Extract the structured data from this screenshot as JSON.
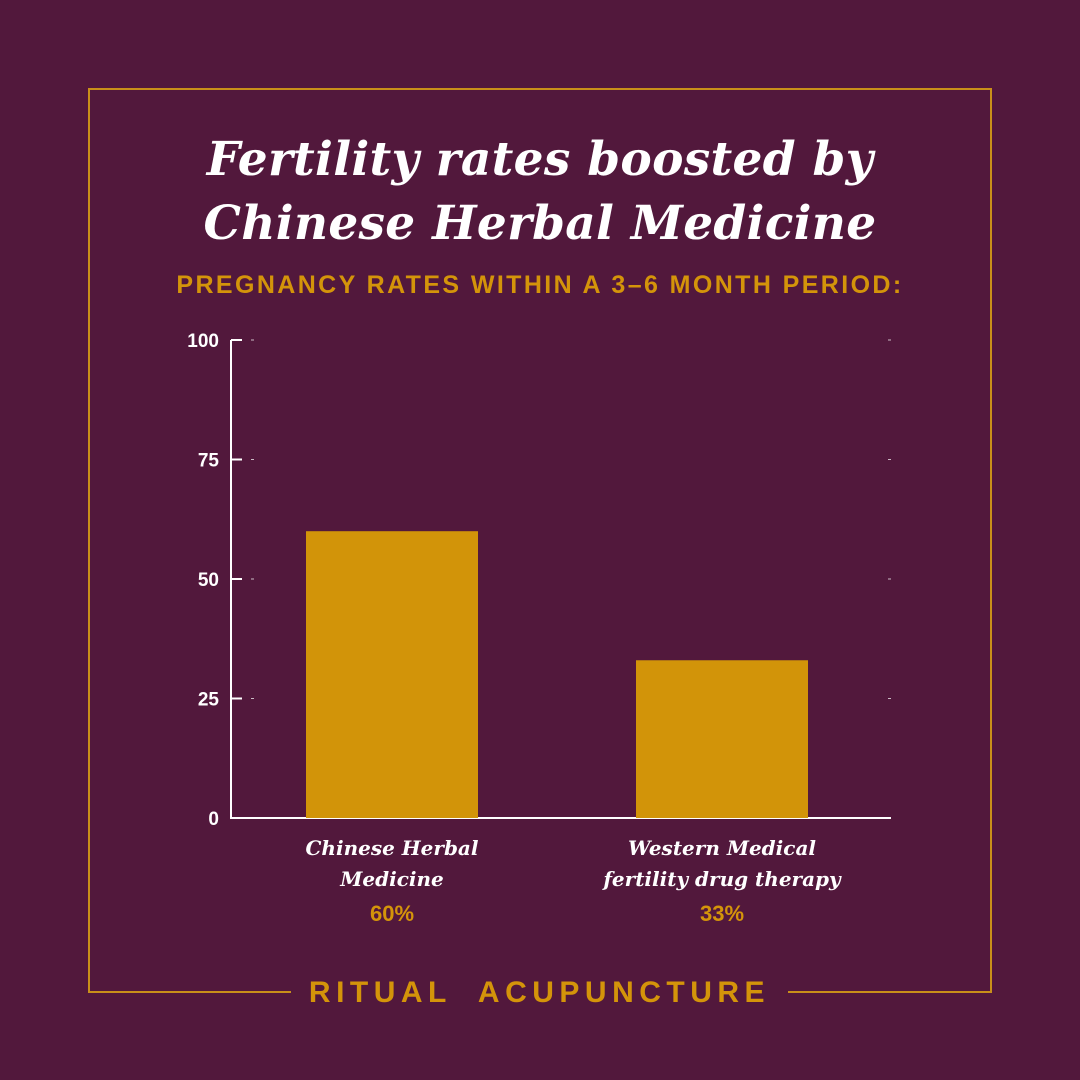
{
  "title": {
    "line1": "Fertility rates boosted by",
    "line2": "Chinese Herbal Medicine"
  },
  "subtitle": "PREGNANCY RATES WITHIN A 3–6 MONTH PERIOD:",
  "footer": "RITUAL  ACUPUNCTURE",
  "colors": {
    "background": "#52183c",
    "accent": "#d4940a",
    "bar": "#d29409",
    "axis": "#ffffff"
  },
  "chart_data": {
    "type": "bar",
    "categories": [
      [
        "Chinese Herbal",
        "Medicine"
      ],
      [
        "Western Medical",
        "fertility drug therapy"
      ]
    ],
    "values": [
      60,
      33
    ],
    "value_labels": [
      "60%",
      "33%"
    ],
    "yticks": [
      "0",
      "25",
      "50",
      "75",
      "100"
    ],
    "ylim": [
      0,
      100
    ],
    "grid": false,
    "legend": "none"
  }
}
